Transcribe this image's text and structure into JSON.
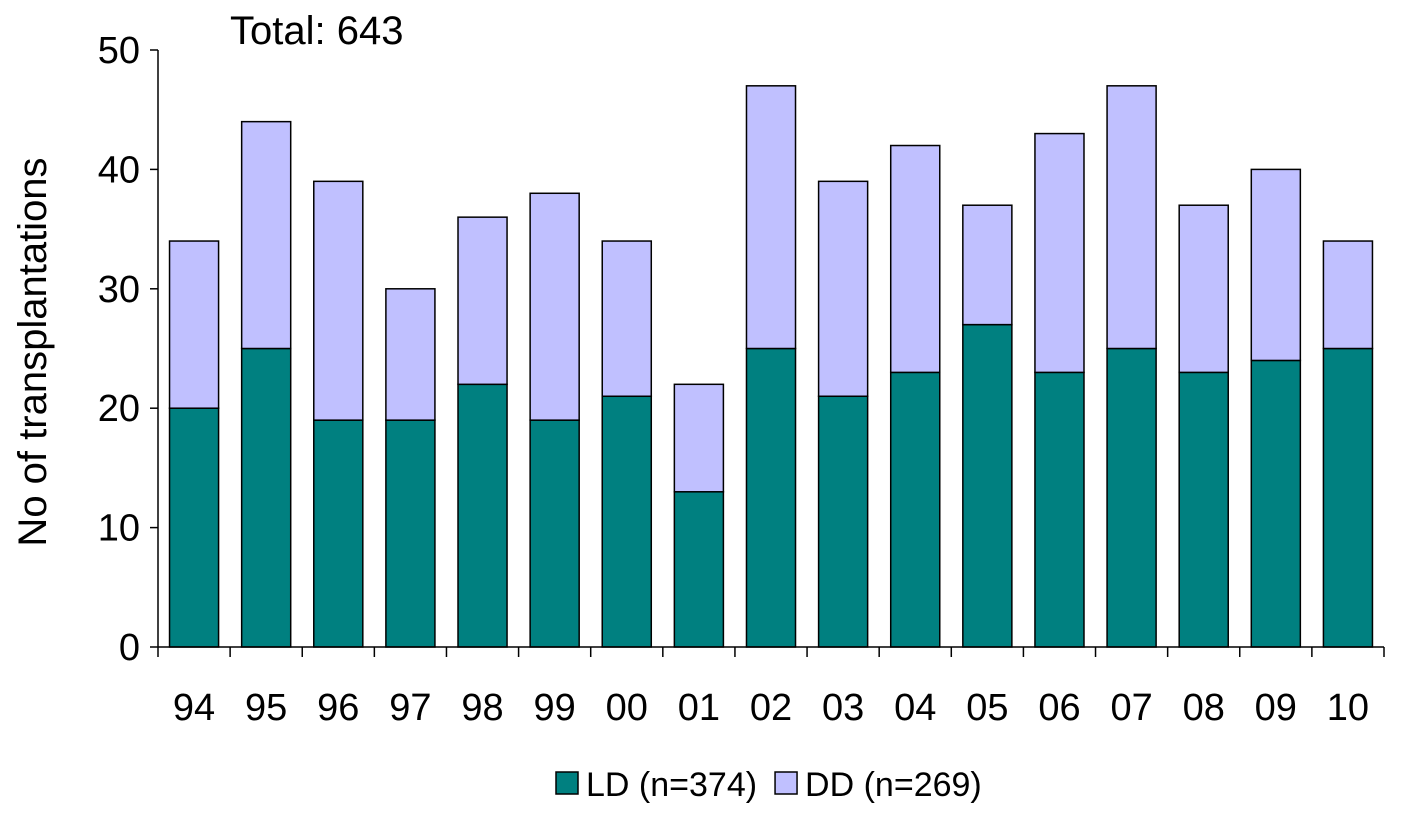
{
  "chart_data": {
    "type": "bar",
    "stacked": true,
    "annotation": "Total: 643",
    "ylabel": "No of transplantations",
    "xlabel": "",
    "ylim": [
      0,
      50
    ],
    "yticks": [
      0,
      10,
      20,
      30,
      40,
      50
    ],
    "grid": false,
    "legend_position": "bottom-center",
    "categories": [
      "94",
      "95",
      "96",
      "97",
      "98",
      "99",
      "00",
      "01",
      "02",
      "03",
      "04",
      "05",
      "06",
      "07",
      "08",
      "09",
      "10"
    ],
    "series": [
      {
        "name": "LD (n=374)",
        "color": "#008080",
        "values": [
          20,
          25,
          19,
          19,
          22,
          19,
          21,
          13,
          25,
          21,
          23,
          27,
          23,
          25,
          23,
          24,
          25
        ]
      },
      {
        "name": "DD (n=269)",
        "color": "#C0C0FF",
        "values": [
          14,
          19,
          20,
          11,
          14,
          19,
          13,
          9,
          22,
          18,
          19,
          10,
          20,
          22,
          14,
          16,
          9
        ]
      }
    ]
  }
}
